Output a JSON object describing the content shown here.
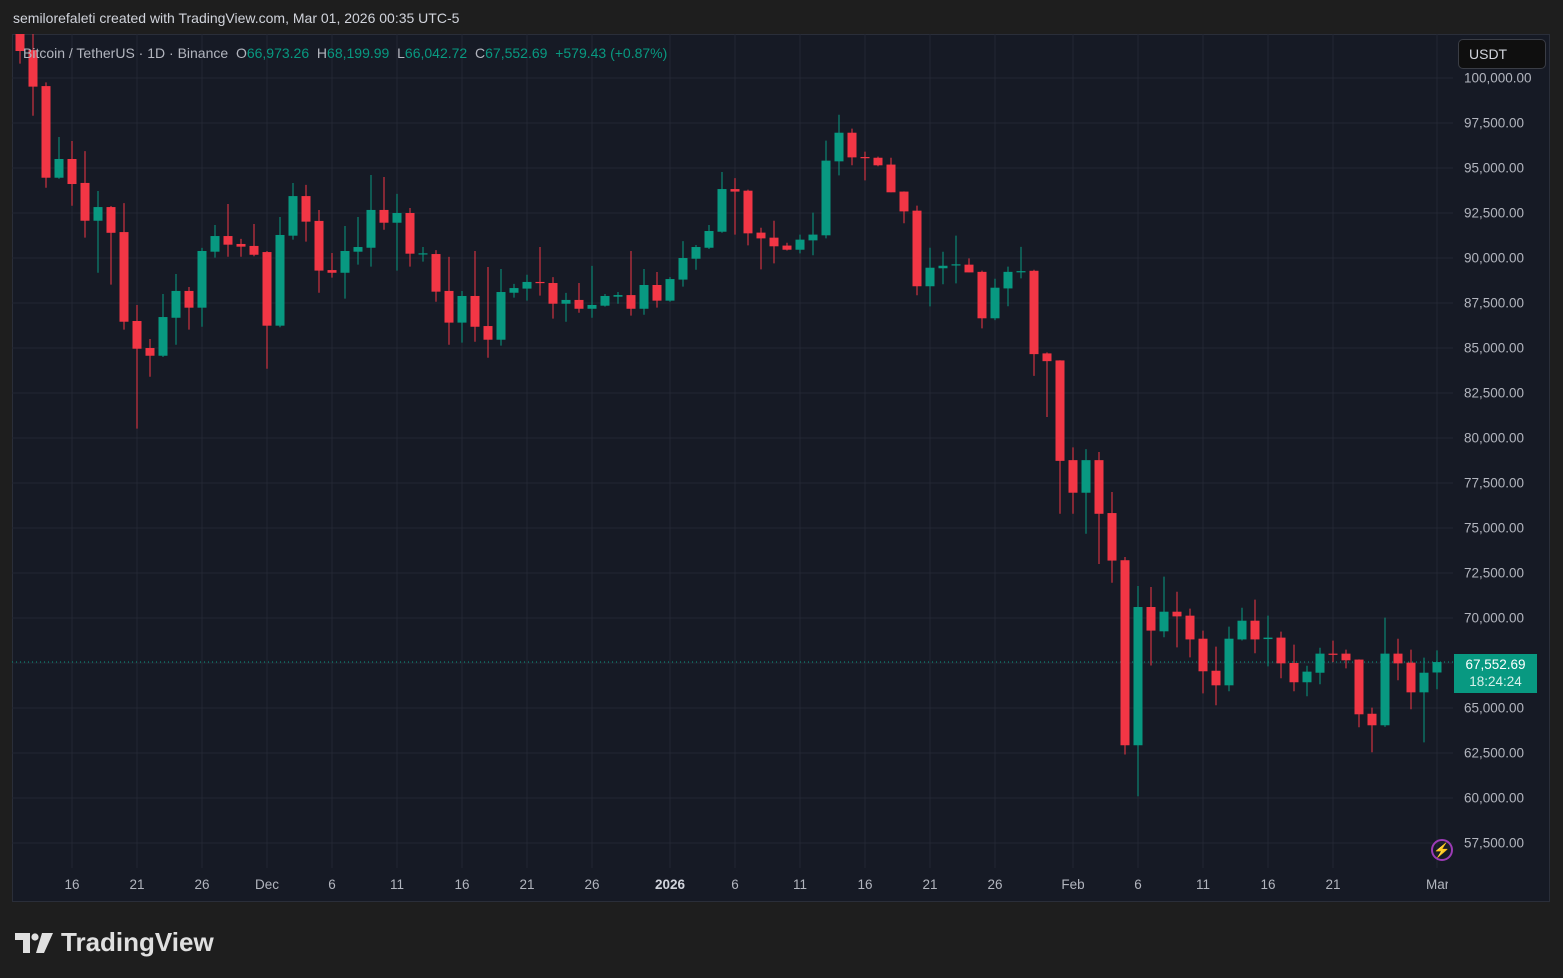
{
  "credit": "semilorefaleti created with TradingView.com, Mar 01, 2026 00:35 UTC-5",
  "legend": {
    "symbol": "Bitcoin / TetherUS · 1D · Binance",
    "o_label": "O",
    "o": "66,973.26",
    "h_label": "H",
    "h": "68,199.99",
    "l_label": "L",
    "l": "66,042.72",
    "c_label": "C",
    "c": "67,552.69",
    "change": "+579.43 (+0.87%)"
  },
  "currency_button": "USDT",
  "last_price": {
    "price": "67,552.69",
    "countdown": "18:24:24",
    "value": 67552.69
  },
  "logo_text": "TradingView",
  "icons": {
    "alert": "lightning-icon",
    "logo": "tradingview-logo-icon"
  },
  "colors": {
    "up": "#089981",
    "down": "#f23645",
    "background": "#161a25",
    "grid": "#232733",
    "text": "#b2b5be",
    "alert": "#9c3bb6"
  },
  "chart_data": {
    "type": "candlestick",
    "title": "Bitcoin / TetherUS · 1D · Binance",
    "ylim": [
      56000,
      102000
    ],
    "xlim": [
      "2025-11-12",
      "2026-03-01"
    ],
    "grid": true,
    "y_ticks": [
      {
        "value": 100000,
        "label": "100,000.00"
      },
      {
        "value": 97500,
        "label": "97,500.00"
      },
      {
        "value": 95000,
        "label": "95,000.00"
      },
      {
        "value": 92500,
        "label": "92,500.00"
      },
      {
        "value": 90000,
        "label": "90,000.00"
      },
      {
        "value": 87500,
        "label": "87,500.00"
      },
      {
        "value": 85000,
        "label": "85,000.00"
      },
      {
        "value": 82500,
        "label": "82,500.00"
      },
      {
        "value": 80000,
        "label": "80,000.00"
      },
      {
        "value": 77500,
        "label": "77,500.00"
      },
      {
        "value": 75000,
        "label": "75,000.00"
      },
      {
        "value": 72500,
        "label": "72,500.00"
      },
      {
        "value": 70000,
        "label": "70,000.00"
      },
      {
        "value": 67500,
        "label": ""
      },
      {
        "value": 65000,
        "label": "65,000.00"
      },
      {
        "value": 62500,
        "label": "62,500.00"
      },
      {
        "value": 60000,
        "label": "60,000.00"
      },
      {
        "value": 57500,
        "label": "57,500.00"
      }
    ],
    "x_ticks": [
      {
        "date": "2025-11-16",
        "label": "16"
      },
      {
        "date": "2025-11-21",
        "label": "21"
      },
      {
        "date": "2025-11-26",
        "label": "26"
      },
      {
        "date": "2025-12-01",
        "label": "Dec"
      },
      {
        "date": "2025-12-06",
        "label": "6"
      },
      {
        "date": "2025-12-11",
        "label": "11"
      },
      {
        "date": "2025-12-16",
        "label": "16"
      },
      {
        "date": "2025-12-21",
        "label": "21"
      },
      {
        "date": "2025-12-26",
        "label": "26"
      },
      {
        "date": "2026-01-01",
        "label": "2026",
        "bold": true
      },
      {
        "date": "2026-01-06",
        "label": "6"
      },
      {
        "date": "2026-01-11",
        "label": "11"
      },
      {
        "date": "2026-01-16",
        "label": "16"
      },
      {
        "date": "2026-01-21",
        "label": "21"
      },
      {
        "date": "2026-01-26",
        "label": "26"
      },
      {
        "date": "2026-02-01",
        "label": "Feb"
      },
      {
        "date": "2026-02-06",
        "label": "6"
      },
      {
        "date": "2026-02-11",
        "label": "11"
      },
      {
        "date": "2026-02-16",
        "label": "16"
      },
      {
        "date": "2026-02-21",
        "label": "21"
      },
      {
        "date": "2026-03-01",
        "label": "Mar"
      }
    ],
    "columns": [
      "date",
      "open",
      "high",
      "low",
      "close"
    ],
    "candles": [
      [
        "2025-11-12",
        104700,
        105300,
        100800,
        101500
      ],
      [
        "2025-11-13",
        101550,
        103000,
        97900,
        99520
      ],
      [
        "2025-11-14",
        99550,
        99760,
        93900,
        94460
      ],
      [
        "2025-11-15",
        94460,
        96720,
        94400,
        95500
      ],
      [
        "2025-11-16",
        95500,
        96500,
        92900,
        94110
      ],
      [
        "2025-11-17",
        94170,
        95940,
        91130,
        92070
      ],
      [
        "2025-11-18",
        92070,
        93720,
        89180,
        92830
      ],
      [
        "2025-11-19",
        92830,
        92890,
        88520,
        91400
      ],
      [
        "2025-11-20",
        91440,
        93050,
        86020,
        86460
      ],
      [
        "2025-11-21",
        86500,
        87390,
        80520,
        84960
      ],
      [
        "2025-11-22",
        85000,
        85500,
        83400,
        84570
      ],
      [
        "2025-11-23",
        84570,
        88000,
        84500,
        86720
      ],
      [
        "2025-11-24",
        86680,
        89110,
        85180,
        88170
      ],
      [
        "2025-11-25",
        88170,
        88390,
        86020,
        87240
      ],
      [
        "2025-11-26",
        87240,
        90560,
        86180,
        90390
      ],
      [
        "2025-11-27",
        90350,
        91830,
        90020,
        91220
      ],
      [
        "2025-11-28",
        91220,
        93000,
        90070,
        90740
      ],
      [
        "2025-11-29",
        90780,
        91060,
        90070,
        90630
      ],
      [
        "2025-11-30",
        90670,
        91890,
        90100,
        90180
      ],
      [
        "2025-12-01",
        90330,
        90390,
        83850,
        86240
      ],
      [
        "2025-12-02",
        86240,
        92280,
        86150,
        91280
      ],
      [
        "2025-12-03",
        91240,
        94170,
        91020,
        93440
      ],
      [
        "2025-12-04",
        93440,
        94060,
        90910,
        92020
      ],
      [
        "2025-12-05",
        92060,
        92670,
        88070,
        89300
      ],
      [
        "2025-12-06",
        89330,
        90280,
        88910,
        89180
      ],
      [
        "2025-12-07",
        89180,
        91780,
        87740,
        90390
      ],
      [
        "2025-12-08",
        90350,
        92280,
        89630,
        90610
      ],
      [
        "2025-12-09",
        90570,
        94610,
        89520,
        92670
      ],
      [
        "2025-12-10",
        92670,
        94500,
        91570,
        91960
      ],
      [
        "2025-12-11",
        91960,
        93560,
        89300,
        92500
      ],
      [
        "2025-12-12",
        92500,
        92780,
        89520,
        90240
      ],
      [
        "2025-12-13",
        90260,
        90610,
        89800,
        90260
      ],
      [
        "2025-12-14",
        90220,
        90440,
        87570,
        88130
      ],
      [
        "2025-12-15",
        88170,
        90060,
        85180,
        86410
      ],
      [
        "2025-12-16",
        86410,
        88170,
        85300,
        87890
      ],
      [
        "2025-12-17",
        87890,
        90390,
        85350,
        86180
      ],
      [
        "2025-12-18",
        86220,
        89500,
        84460,
        85460
      ],
      [
        "2025-12-19",
        85460,
        89390,
        85130,
        88110
      ],
      [
        "2025-12-20",
        88070,
        88560,
        87800,
        88330
      ],
      [
        "2025-12-21",
        88300,
        89070,
        87630,
        88670
      ],
      [
        "2025-12-22",
        88670,
        90610,
        87910,
        88610
      ],
      [
        "2025-12-23",
        88610,
        88940,
        86630,
        87460
      ],
      [
        "2025-12-24",
        87460,
        88060,
        86460,
        87670
      ],
      [
        "2025-12-25",
        87670,
        88610,
        86960,
        87180
      ],
      [
        "2025-12-26",
        87180,
        89560,
        86680,
        87390
      ],
      [
        "2025-12-27",
        87350,
        88000,
        87300,
        87890
      ],
      [
        "2025-12-28",
        87850,
        88110,
        87460,
        87940
      ],
      [
        "2025-12-29",
        87940,
        90390,
        86800,
        87180
      ],
      [
        "2025-12-30",
        87180,
        89390,
        86850,
        88500
      ],
      [
        "2025-12-31",
        88500,
        89220,
        87240,
        87630
      ],
      [
        "2026-01-01",
        87630,
        88940,
        87570,
        88830
      ],
      [
        "2026-01-02",
        88800,
        90940,
        88410,
        90000
      ],
      [
        "2026-01-03",
        89960,
        90720,
        89350,
        90610
      ],
      [
        "2026-01-04",
        90570,
        91830,
        90500,
        91500
      ],
      [
        "2026-01-05",
        91460,
        94780,
        91400,
        93830
      ],
      [
        "2026-01-06",
        93830,
        94440,
        91300,
        93690
      ],
      [
        "2026-01-07",
        93740,
        93800,
        90700,
        91370
      ],
      [
        "2026-01-08",
        91410,
        91680,
        89370,
        91090
      ],
      [
        "2026-01-09",
        91130,
        92070,
        89700,
        90650
      ],
      [
        "2026-01-10",
        90690,
        90850,
        90420,
        90460
      ],
      [
        "2026-01-11",
        90460,
        91300,
        90260,
        91020
      ],
      [
        "2026-01-12",
        90980,
        92520,
        90150,
        91300
      ],
      [
        "2026-01-13",
        91260,
        96520,
        91090,
        95410
      ],
      [
        "2026-01-14",
        95370,
        97960,
        94590,
        96960
      ],
      [
        "2026-01-15",
        96960,
        97190,
        95150,
        95590
      ],
      [
        "2026-01-16",
        95610,
        95910,
        94310,
        95560
      ],
      [
        "2026-01-17",
        95570,
        95630,
        95100,
        95150
      ],
      [
        "2026-01-18",
        95190,
        95570,
        93650,
        93650
      ],
      [
        "2026-01-19",
        93690,
        93700,
        91930,
        92590
      ],
      [
        "2026-01-20",
        92630,
        92910,
        87930,
        88430
      ],
      [
        "2026-01-21",
        88430,
        90570,
        87310,
        89460
      ],
      [
        "2026-01-22",
        89430,
        90350,
        88540,
        89570
      ],
      [
        "2026-01-23",
        89610,
        91240,
        88590,
        89650
      ],
      [
        "2026-01-24",
        89630,
        89980,
        89200,
        89200
      ],
      [
        "2026-01-25",
        89230,
        89300,
        86090,
        86650
      ],
      [
        "2026-01-26",
        86650,
        88850,
        86550,
        88350
      ],
      [
        "2026-01-27",
        88310,
        89520,
        87320,
        89230
      ],
      [
        "2026-01-28",
        89250,
        90620,
        88870,
        89270
      ],
      [
        "2026-01-29",
        89290,
        89350,
        83450,
        84660
      ],
      [
        "2026-01-30",
        84700,
        84760,
        81170,
        84270
      ],
      [
        "2026-01-31",
        84310,
        84320,
        75790,
        78730
      ],
      [
        "2026-02-01",
        78770,
        79480,
        75790,
        76960
      ],
      [
        "2026-02-02",
        76960,
        79380,
        74680,
        78770
      ],
      [
        "2026-02-03",
        78770,
        79220,
        73000,
        75790
      ],
      [
        "2026-02-04",
        75830,
        77000,
        71960,
        73190
      ],
      [
        "2026-02-05",
        73210,
        73390,
        62420,
        62930
      ],
      [
        "2026-02-06",
        62930,
        71780,
        60100,
        70610
      ],
      [
        "2026-02-07",
        70610,
        71720,
        67360,
        69300
      ],
      [
        "2026-02-08",
        69260,
        72300,
        68930,
        70350
      ],
      [
        "2026-02-09",
        70350,
        71460,
        68370,
        70090
      ],
      [
        "2026-02-10",
        70130,
        70520,
        67810,
        68810
      ],
      [
        "2026-02-11",
        68850,
        69300,
        65810,
        67040
      ],
      [
        "2026-02-12",
        67070,
        68410,
        65150,
        66260
      ],
      [
        "2026-02-13",
        66260,
        69520,
        65930,
        68850
      ],
      [
        "2026-02-14",
        68810,
        70570,
        68750,
        69850
      ],
      [
        "2026-02-15",
        69850,
        71020,
        68040,
        68810
      ],
      [
        "2026-02-16",
        68830,
        70130,
        67310,
        68910
      ],
      [
        "2026-02-17",
        68910,
        69240,
        66650,
        67480
      ],
      [
        "2026-02-18",
        67500,
        68520,
        65930,
        66430
      ],
      [
        "2026-02-19",
        66430,
        67350,
        65650,
        67020
      ],
      [
        "2026-02-20",
        66960,
        68350,
        66320,
        68020
      ],
      [
        "2026-02-21",
        68020,
        68740,
        67550,
        67980
      ],
      [
        "2026-02-22",
        68020,
        68240,
        67200,
        67650
      ],
      [
        "2026-02-23",
        67690,
        67700,
        63930,
        64650
      ],
      [
        "2026-02-24",
        64680,
        65020,
        62540,
        64040
      ],
      [
        "2026-02-25",
        64040,
        70020,
        63950,
        68020
      ],
      [
        "2026-02-26",
        68020,
        68850,
        66540,
        67480
      ],
      [
        "2026-02-27",
        67520,
        68240,
        64930,
        65870
      ],
      [
        "2026-02-28",
        65870,
        67800,
        63090,
        66960
      ],
      [
        "2026-03-01",
        66973.26,
        68199.99,
        66042.72,
        67552.69
      ]
    ]
  }
}
